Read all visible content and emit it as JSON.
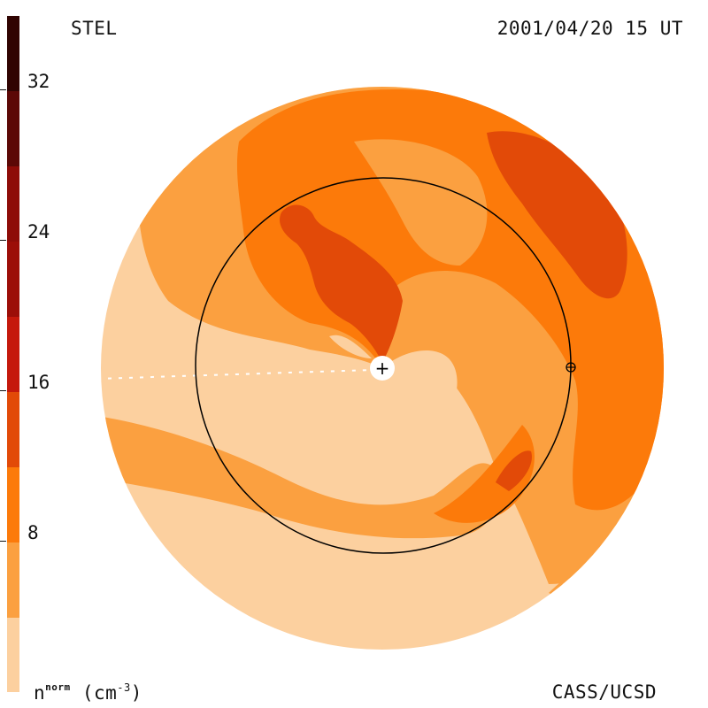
{
  "header": {
    "station": "STEL",
    "datetime": "2001/04/20 15 UT"
  },
  "footer": {
    "unit_base": "n",
    "unit_sup": "norm",
    "unit_paren_open": "(cm",
    "unit_exp": "-3",
    "unit_paren_close": ")",
    "credit": "CASS/UCSD"
  },
  "colorbar": {
    "ticks": [
      "32",
      "24",
      "16",
      "8"
    ],
    "bands": [
      "#fcd09f",
      "#fba040",
      "#fc7a0a",
      "#e24a08",
      "#c5190c",
      "#8e0c08",
      "#5c0806",
      "#300402"
    ]
  },
  "map": {
    "sun_symbol": "+",
    "earth_symbol": "⊕",
    "colors": {
      "level1": "#fcd09f",
      "level2": "#fba040",
      "level3": "#fc7a0a",
      "level4": "#e24a08"
    }
  }
}
